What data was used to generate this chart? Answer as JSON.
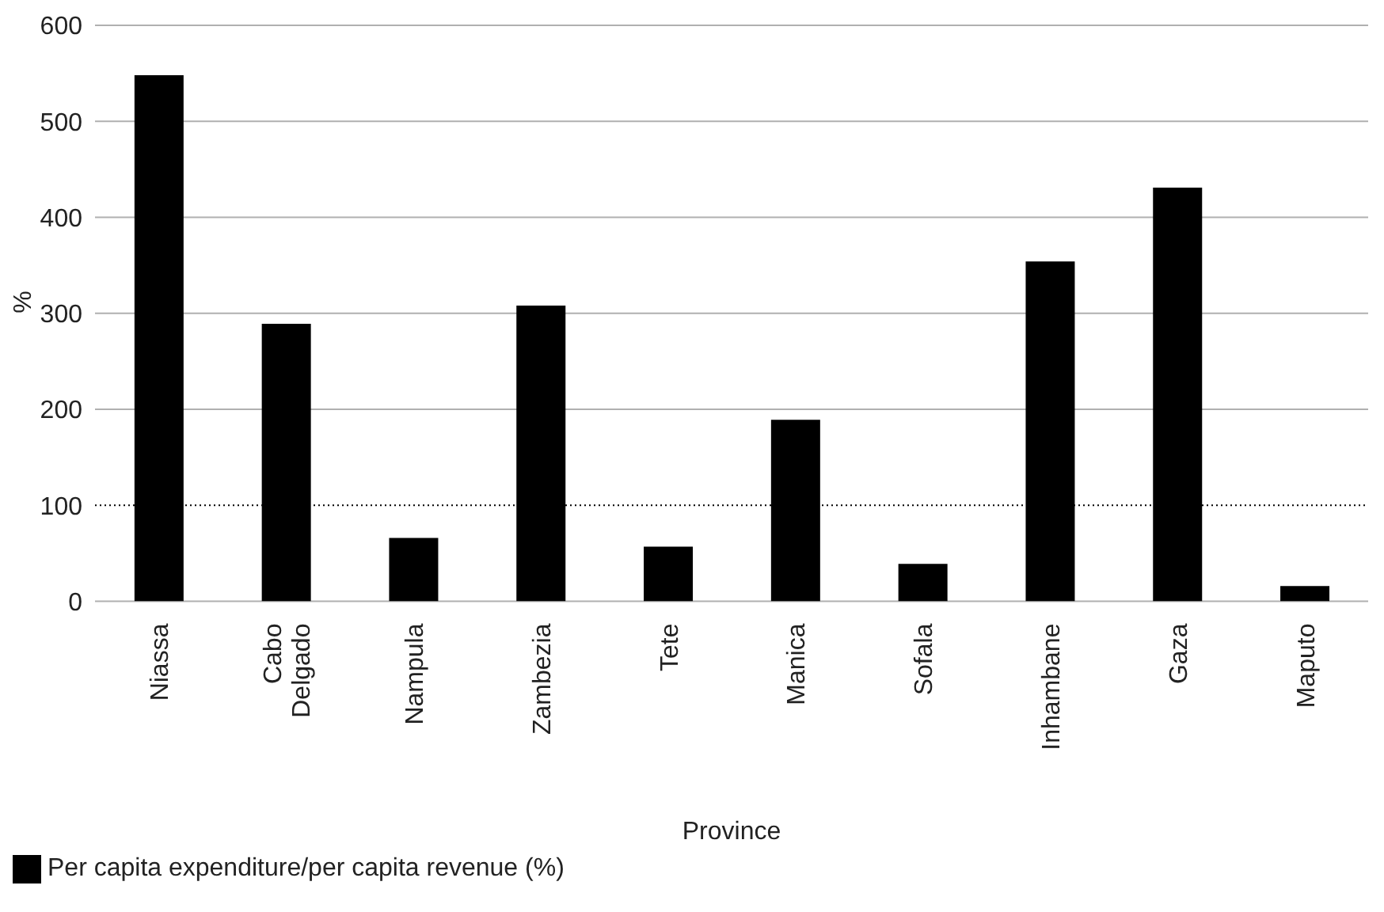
{
  "chart_data": {
    "type": "bar",
    "xlabel": "Province",
    "ylabel": "%",
    "categories": [
      "Niassa",
      "Cabo Delgado",
      "Nampula",
      "Zambezia",
      "Tete",
      "Manica",
      "Sofala",
      "Inhambane",
      "Gaza",
      "Maputo"
    ],
    "series": [
      {
        "name": "Per capita expenditure/per capita revenue (%)",
        "color": "#000000",
        "values": [
          548,
          289,
          66,
          308,
          57,
          189,
          39,
          354,
          431,
          16
        ]
      }
    ],
    "ylim": [
      0,
      600
    ],
    "yticks": [
      0,
      100,
      200,
      300,
      400,
      500,
      600
    ],
    "grid": "y",
    "legend": "bottom left",
    "ref_lines": [
      {
        "axis": "y",
        "value": 100,
        "color": "#000000",
        "line_style": "dotted"
      }
    ]
  }
}
